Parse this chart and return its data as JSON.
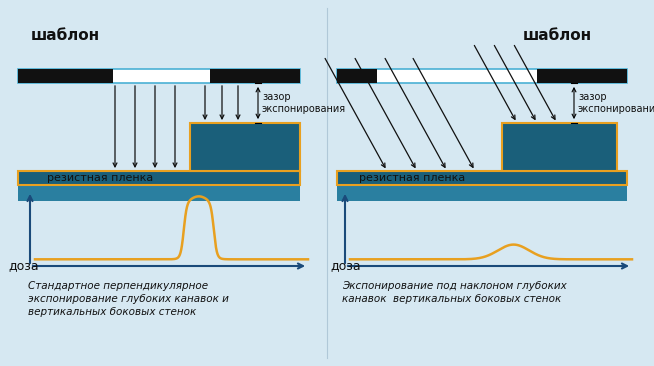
{
  "bg_color": "#d6e8f2",
  "title_left": "шаблон",
  "title_right": "шаблон",
  "label_resist_left": "резистная пленка",
  "label_resist_right": "резистная пленка",
  "label_gap_left": "зазор\nэкспонирования",
  "label_gap_right": "зазор\nэкспонирования",
  "label_dose_left": "доза",
  "label_dose_right": "доза",
  "caption_left": "Стандартное перпендикулярное\nэкспонирование глубоких канавок и\nвертикальных боковых стенок",
  "caption_right": "Экспонирование под наклоном глубоких\nканавок  вертикальных боковых стенок",
  "resist_color": "#1a5f7a",
  "resist_outline_color": "#e8a020",
  "substrate_color": "#2a7fa0",
  "template_fill": "#ffffff",
  "template_outline": "#4ab0d4",
  "template_mask_color": "#111111",
  "arrow_color": "#111111",
  "plot_line_color": "#e8a020",
  "axis_color": "#1a4a7a",
  "divider_color": "#b0c8d8"
}
